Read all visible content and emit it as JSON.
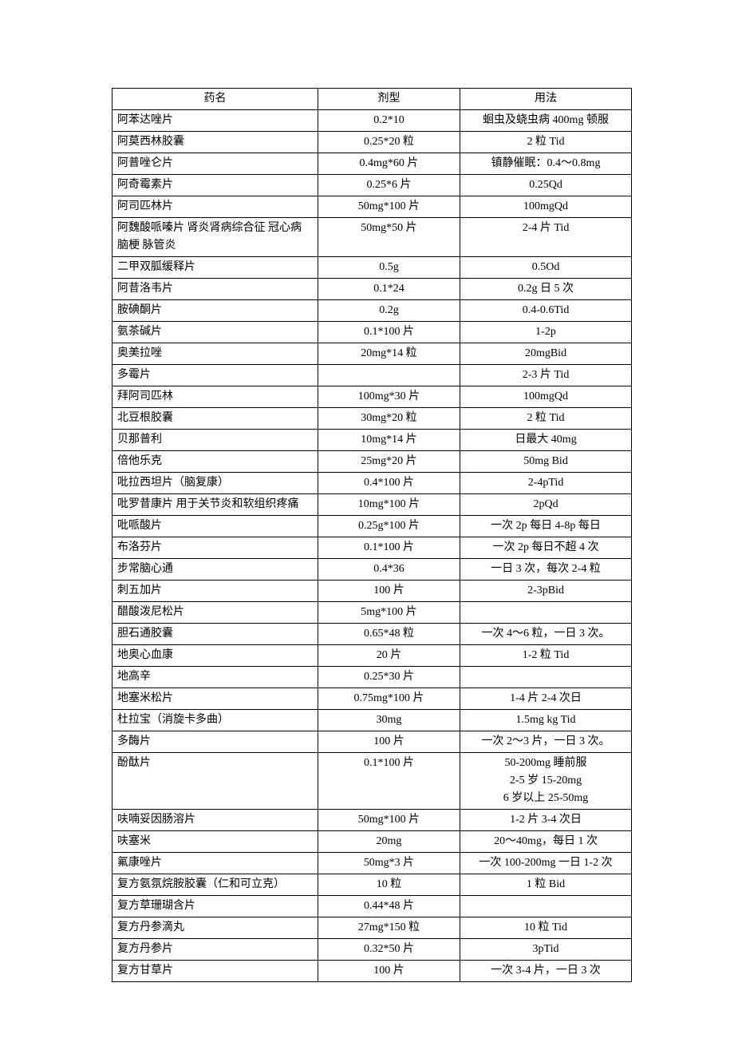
{
  "headers": {
    "name": "药名",
    "form": "剂型",
    "usage": "用法"
  },
  "style": {
    "background_color": "#ffffff",
    "border_color": "#000000",
    "font_family": "SimSun",
    "font_size": 14,
    "text_color": "#000000",
    "col_widths_pct": [
      40,
      27,
      33
    ],
    "name_align": "left",
    "form_align": "center",
    "usage_align": "center"
  },
  "rows": [
    {
      "name": "阿苯达唑片",
      "form": "0.2*10",
      "usage": "蛔虫及蛲虫病 400mg 顿服"
    },
    {
      "name": "阿莫西林胶囊",
      "form": "0.25*20 粒",
      "usage": "2 粒 Tid"
    },
    {
      "name": "阿普唑仑片",
      "form": "0.4mg*60 片",
      "usage": "镇静催眠：0.4～0.8mg"
    },
    {
      "name": "阿奇霉素片",
      "form": "0.25*6 片",
      "usage": "0.25Qd"
    },
    {
      "name": "阿司匹林片",
      "form": "50mg*100 片",
      "usage": "100mgQd"
    },
    {
      "name": "阿魏酸哌嗪片 肾炎肾病综合征 冠心病  脑梗  脉管炎",
      "form": "50mg*50 片",
      "usage": "2-4 片 Tid"
    },
    {
      "name": "二甲双胍缓释片",
      "form": "0.5g",
      "usage": "0.5Od"
    },
    {
      "name": "阿昔洛韦片",
      "form": "0.1*24",
      "usage": "0.2g 日 5 次"
    },
    {
      "name": "胺碘酮片",
      "form": "0.2g",
      "usage": "0.4-0.6Tid"
    },
    {
      "name": "氨茶碱片",
      "form": "0.1*100 片",
      "usage": "1-2p"
    },
    {
      "name": "奥美拉唑",
      "form": "20mg*14 粒",
      "usage": "20mgBid"
    },
    {
      "name": "多霉片",
      "form": "",
      "usage": "2-3 片 Tid"
    },
    {
      "name": "拜阿司匹林",
      "form": "100mg*30 片",
      "usage": "100mgQd"
    },
    {
      "name": "北豆根胶囊",
      "form": "30mg*20 粒",
      "usage": "2 粒 Tid"
    },
    {
      "name": "贝那普利",
      "form": "10mg*14 片",
      "usage": "日最大 40mg"
    },
    {
      "name": "倍他乐克",
      "form": "25mg*20 片",
      "usage": "50mg Bid"
    },
    {
      "name": "吡拉西坦片（脑复康）",
      "form": "0.4*100 片",
      "usage": "2-4pTid"
    },
    {
      "name": "吡罗昔康片 用于关节炎和软组织疼痛",
      "form": "10mg*100 片",
      "usage": "2pQd"
    },
    {
      "name": "吡哌酸片",
      "form": "0.25g*100 片",
      "usage": "一次 2p 每日 4-8p 每日"
    },
    {
      "name": "布洛芬片",
      "form": "0.1*100 片",
      "usage": "一次 2p 每日不超 4 次"
    },
    {
      "name": "步常脑心通",
      "form": "0.4*36",
      "usage": "一日 3 次，每次 2-4 粒"
    },
    {
      "name": "刺五加片",
      "form": "100 片",
      "usage": "2-3pBid"
    },
    {
      "name": "醋酸泼尼松片",
      "form": "5mg*100 片",
      "usage": ""
    },
    {
      "name": "胆石通胶囊",
      "form": "0.65*48 粒",
      "usage": "一次 4～6 粒，一日 3 次。"
    },
    {
      "name": "地奥心血康",
      "form": "20 片",
      "usage": "1-2 粒 Tid"
    },
    {
      "name": "地高辛",
      "form": "0.25*30 片",
      "usage": ""
    },
    {
      "name": "地塞米松片",
      "form": "0.75mg*100 片",
      "usage": "1-4 片 2-4 次日"
    },
    {
      "name": "杜拉宝（消旋卡多曲）",
      "form": "30mg",
      "usage": "1.5mg kg Tid"
    },
    {
      "name": "多酶片",
      "form": "100 片",
      "usage": "一次 2～3 片，一日 3 次。"
    },
    {
      "name": "酚酞片",
      "form": "0.1*100 片",
      "usage": "50-200mg 睡前服\n2-5 岁 15-20mg\n6 岁以上 25-50mg"
    },
    {
      "name": "呋喃妥因肠溶片",
      "form": "50mg*100 片",
      "usage": "1-2 片 3-4 次日"
    },
    {
      "name": "呋塞米",
      "form": "20mg",
      "usage": "20～40mg，每日 1 次"
    },
    {
      "name": "氟康唑片",
      "form": "50mg*3 片",
      "usage": "一次 100-200mg 一日 1-2 次"
    },
    {
      "name": "复方氨氛烷胺胶囊（仁和可立克）",
      "form": "10 粒",
      "usage": "1 粒 Bid"
    },
    {
      "name": "复方草珊瑚含片",
      "form": "0.44*48 片",
      "usage": ""
    },
    {
      "name": "复方丹参滴丸",
      "form": "27mg*150 粒",
      "usage": "10 粒 Tid"
    },
    {
      "name": "复方丹参片",
      "form": "0.32*50 片",
      "usage": "3pTid"
    },
    {
      "name": "复方甘草片",
      "form": "100 片",
      "usage": "一次 3-4 片，一日 3 次"
    }
  ]
}
